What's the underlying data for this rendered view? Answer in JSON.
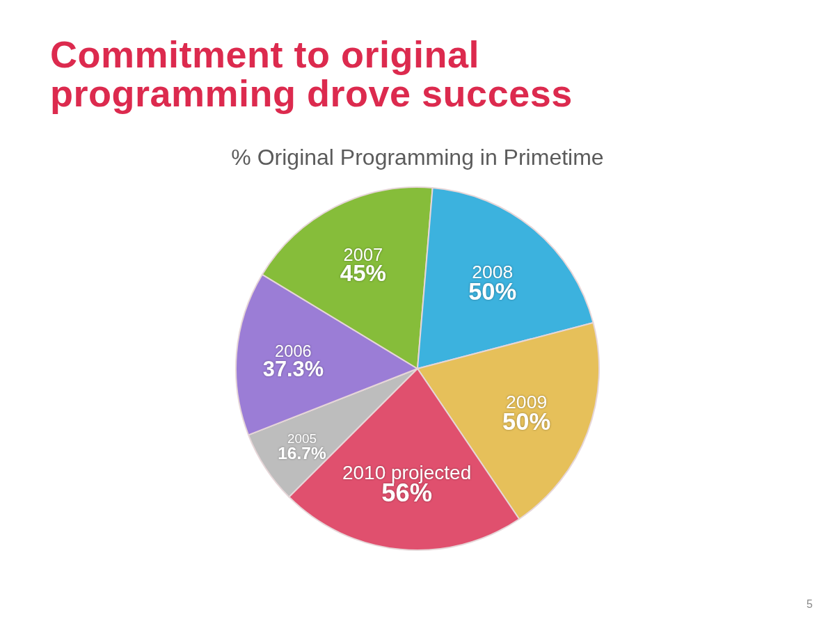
{
  "chart_data": {
    "type": "pie",
    "title": "Commitment to original programming drove success",
    "subtitle": "% Original Programming in Primetime",
    "categories": [
      "2005",
      "2006",
      "2007",
      "2008",
      "2009",
      "2010 projected"
    ],
    "values": [
      16.7,
      37.3,
      45,
      50,
      50,
      56
    ],
    "colors": [
      "#bdbdbd",
      "#9b7dd6",
      "#86bd3a",
      "#3cb2de",
      "#e6c05a",
      "#e0506e"
    ],
    "value_labels": [
      "16.7%",
      "37.3%",
      "45%",
      "50%",
      "50%",
      "56%"
    ],
    "annotations": [
      "5"
    ]
  }
}
